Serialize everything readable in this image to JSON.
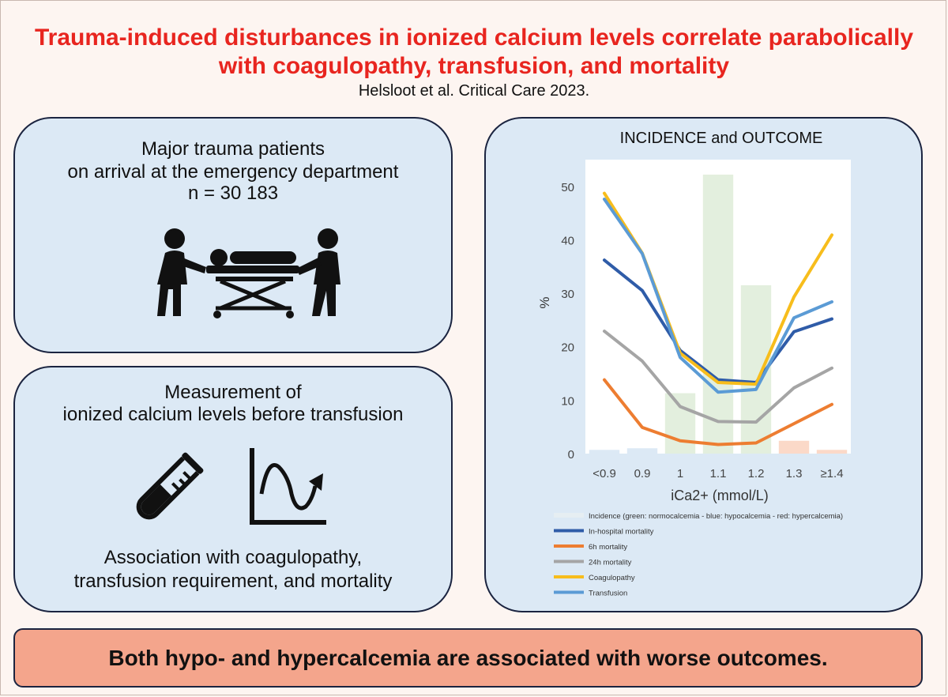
{
  "header": {
    "title_line1": "Trauma-induced disturbances in ionized calcium levels correlate parabolically",
    "title_line2": "with coagulopathy, transfusion, and mortality",
    "citation": "Helsloot et al. Critical Care 2023."
  },
  "panel1": {
    "line1": "Major trauma patients",
    "line2": "on arrival at the emergency department",
    "line3": "n = 30 183",
    "icon": "stretcher-patient-icon"
  },
  "panel2": {
    "line1": "Measurement of",
    "line2": "ionized calcium levels before transfusion",
    "line3": "Association with coagulopathy,",
    "line4": "transfusion requirement, and mortality",
    "icons": [
      "test-tube-icon",
      "curve-graph-icon"
    ]
  },
  "bottom_banner": "Both hypo- and hypercalcemia are associated with worse outcomes.",
  "chart_data": {
    "type": "line",
    "title": "INCIDENCE and OUTCOME",
    "xlabel": "iCa2+ (mmol/L)",
    "ylabel": "%",
    "ylim": [
      0,
      55
    ],
    "yticks": [
      0,
      10,
      20,
      30,
      40,
      50
    ],
    "categories": [
      "<0.9",
      "0.9",
      "1",
      "1.1",
      "1.2",
      "1.3",
      "≥1.4"
    ],
    "grid": false,
    "legend_placement": "bottom",
    "bars": {
      "name": "Incidence (green: normocalcemia - blue: hypocalcemia - red: hypercalcemia)",
      "values": [
        0.7,
        1.0,
        11.3,
        52.2,
        31.5,
        2.4,
        0.7
      ],
      "colors": [
        "#dce9f5",
        "#dce9f5",
        "#e3efde",
        "#e3efde",
        "#e3efde",
        "#fbd9c8",
        "#fbd9c8"
      ]
    },
    "series": [
      {
        "name": "In-hospital mortality",
        "color": "#2f5ca8",
        "values": [
          36.2,
          30.5,
          19.3,
          13.8,
          13.3,
          22.8,
          25.2
        ]
      },
      {
        "name": "6h mortality",
        "color": "#ed7d31",
        "values": [
          13.8,
          4.9,
          2.4,
          1.7,
          2.0,
          5.6,
          9.2
        ]
      },
      {
        "name": "24h mortality",
        "color": "#a5a5a5",
        "values": [
          22.9,
          17.3,
          8.8,
          6.0,
          5.9,
          12.3,
          16.0
        ]
      },
      {
        "name": "Coagulopathy",
        "color": "#f7bd1c",
        "values": [
          48.7,
          37.5,
          18.8,
          13.3,
          13.0,
          29.3,
          40.9
        ]
      },
      {
        "name": "Transfusion",
        "color": "#5b9bd5",
        "values": [
          47.6,
          37.4,
          18.0,
          11.5,
          12.0,
          25.4,
          28.4
        ]
      }
    ]
  }
}
